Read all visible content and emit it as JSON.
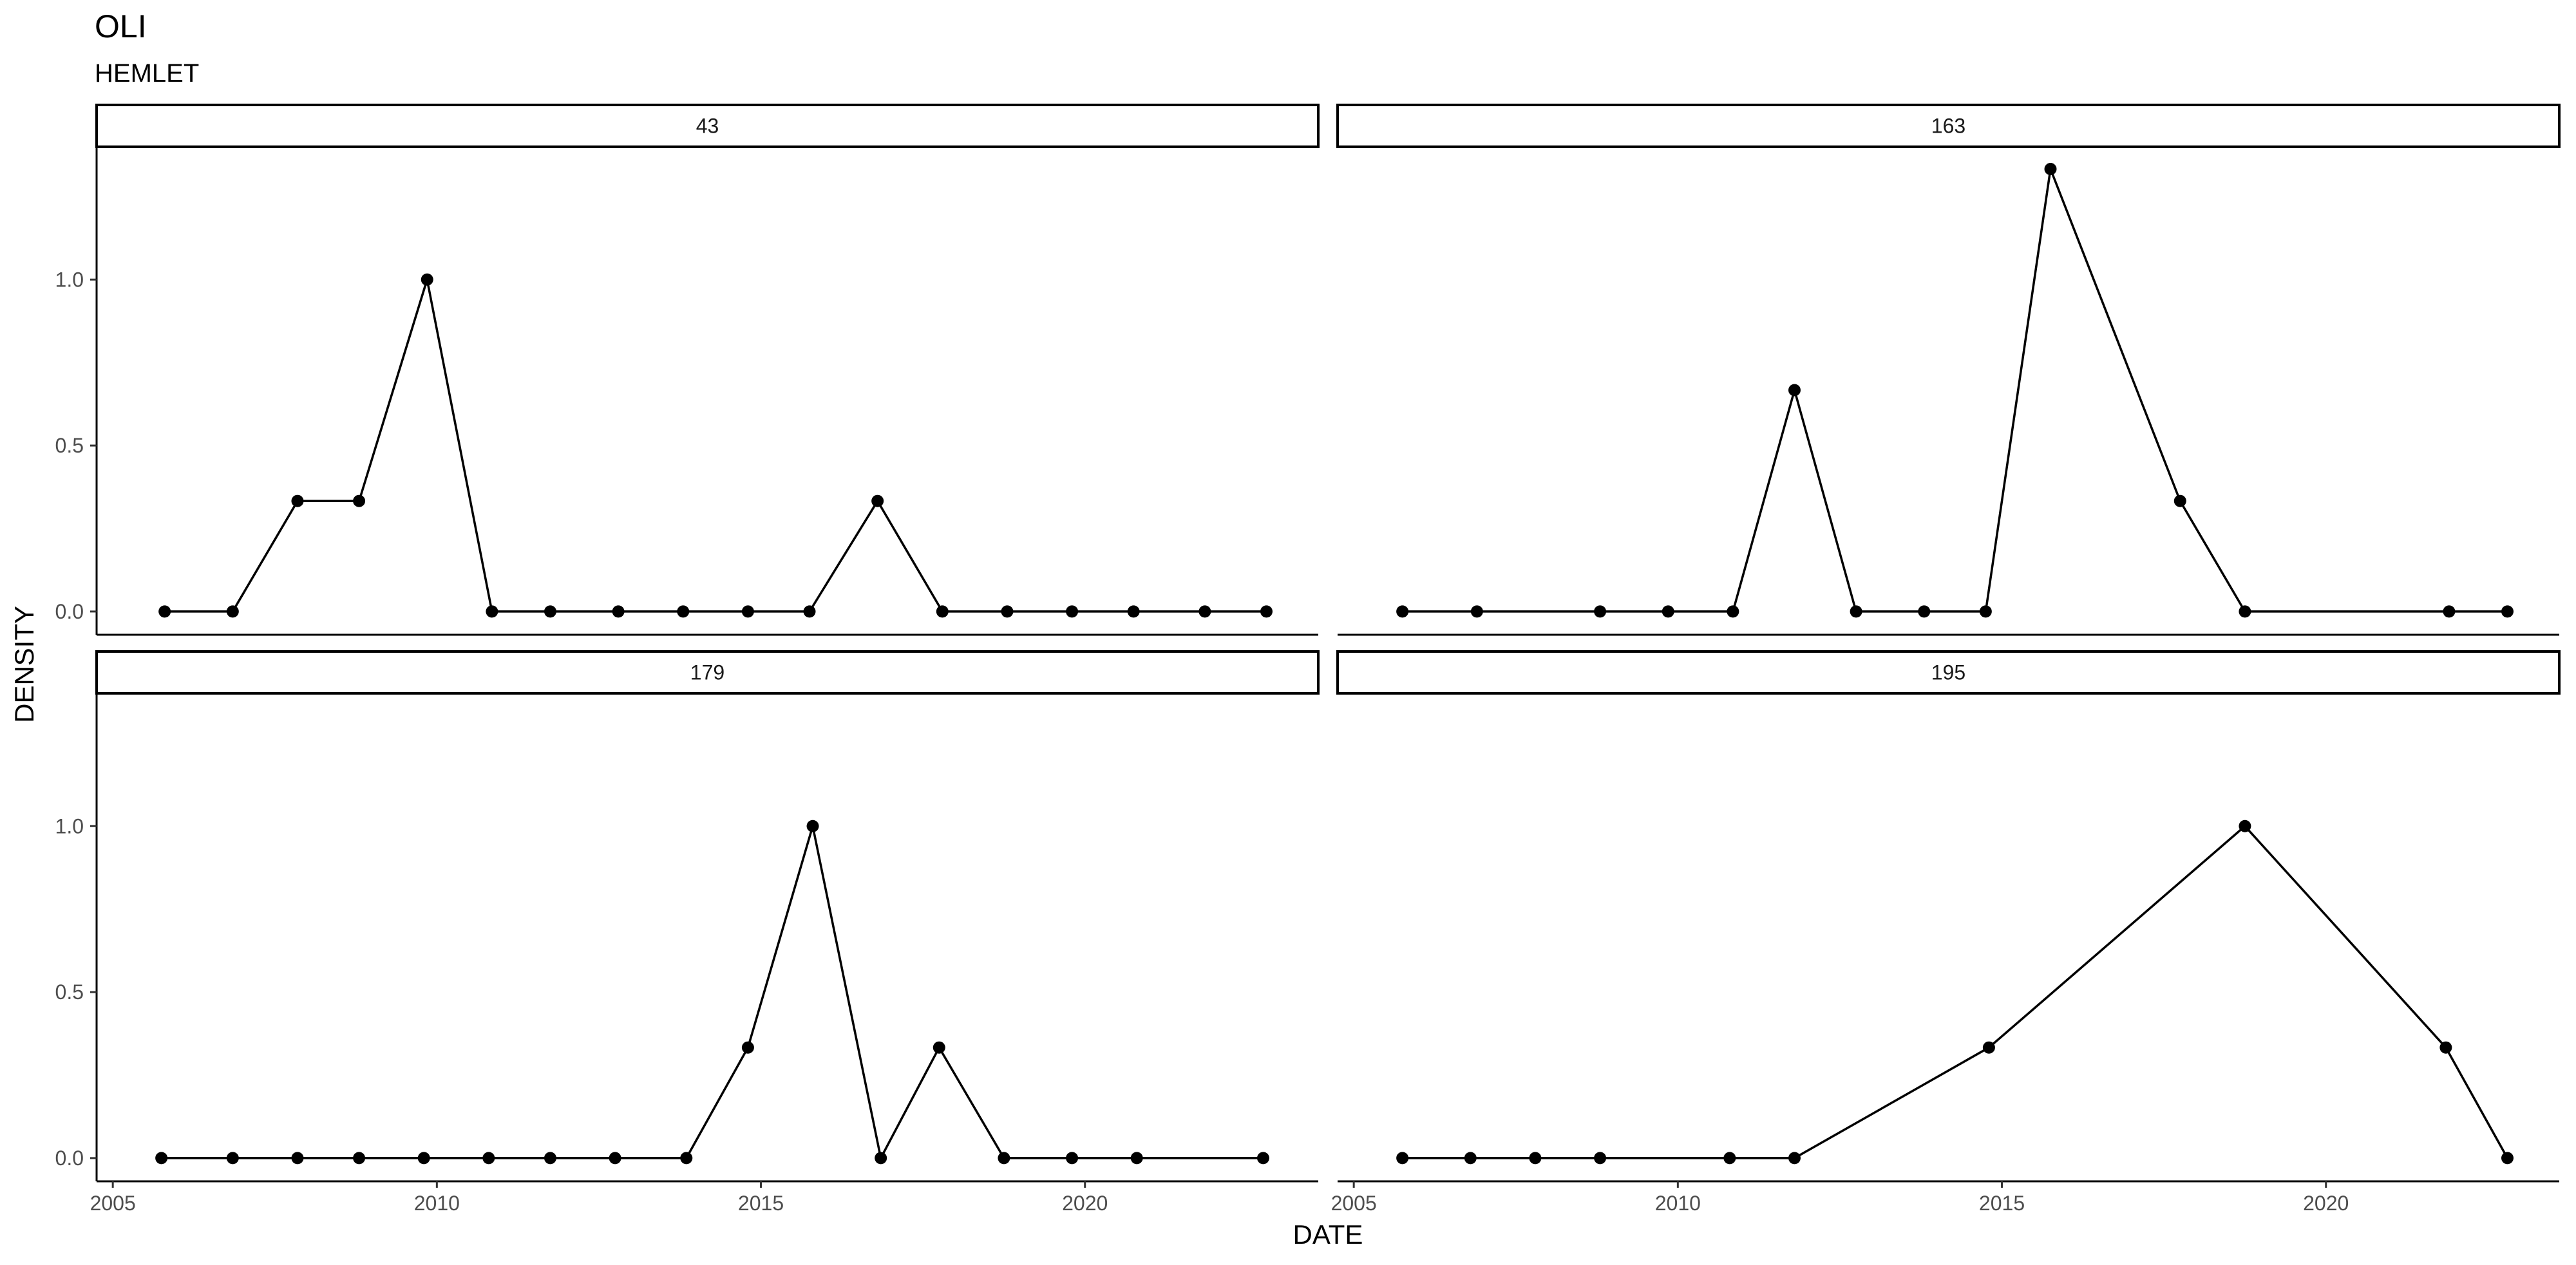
{
  "chart_data": {
    "type": "line",
    "title": "OLI",
    "subtitle": "HEMLET",
    "xlabel": "DATE",
    "ylabel": "DENSITY",
    "xlim": [
      2004.75,
      2023.6
    ],
    "ylim": [
      -0.07,
      1.4
    ],
    "x_ticks": [
      2005,
      2010,
      2015,
      2020
    ],
    "y_ticks": [
      0.0,
      0.5,
      1.0
    ],
    "y_tick_labels": [
      "0.0",
      "0.5",
      "1.0"
    ],
    "grid": false,
    "markers": true,
    "color": "#000000",
    "panels": [
      {
        "label": "43",
        "x": [
          2005.8,
          2006.85,
          2007.85,
          2008.8,
          2009.85,
          2010.85,
          2011.75,
          2012.8,
          2013.8,
          2014.8,
          2015.75,
          2016.8,
          2017.8,
          2018.8,
          2019.8,
          2020.75,
          2021.85,
          2022.8
        ],
        "y": [
          0,
          0,
          0.333,
          0.333,
          1.0,
          0,
          0,
          0,
          0,
          0,
          0,
          0.333,
          0,
          0,
          0,
          0,
          0,
          0
        ]
      },
      {
        "label": "163",
        "x": [
          2005.75,
          2006.9,
          2008.8,
          2009.85,
          2010.85,
          2011.8,
          2012.75,
          2013.8,
          2014.75,
          2015.75,
          2017.75,
          2018.75,
          2021.9,
          2022.8
        ],
        "y": [
          0,
          0,
          0,
          0,
          0,
          0.667,
          0,
          0,
          0,
          1.333,
          0.333,
          0,
          0,
          0
        ]
      },
      {
        "label": "179",
        "x": [
          2005.75,
          2006.85,
          2007.85,
          2008.8,
          2009.8,
          2010.8,
          2011.75,
          2012.75,
          2013.85,
          2014.8,
          2015.8,
          2016.85,
          2017.75,
          2018.75,
          2019.8,
          2020.8,
          2022.75
        ],
        "y": [
          0,
          0,
          0,
          0,
          0,
          0,
          0,
          0,
          0,
          0.333,
          1.0,
          0,
          0.333,
          0,
          0,
          0,
          0
        ]
      },
      {
        "label": "195",
        "x": [
          2005.75,
          2006.8,
          2007.8,
          2008.8,
          2010.8,
          2011.8,
          2014.8,
          2018.75,
          2021.85,
          2022.8
        ],
        "y": [
          0,
          0,
          0,
          0,
          0,
          0,
          0.333,
          1.0,
          0.333,
          0
        ]
      }
    ]
  }
}
